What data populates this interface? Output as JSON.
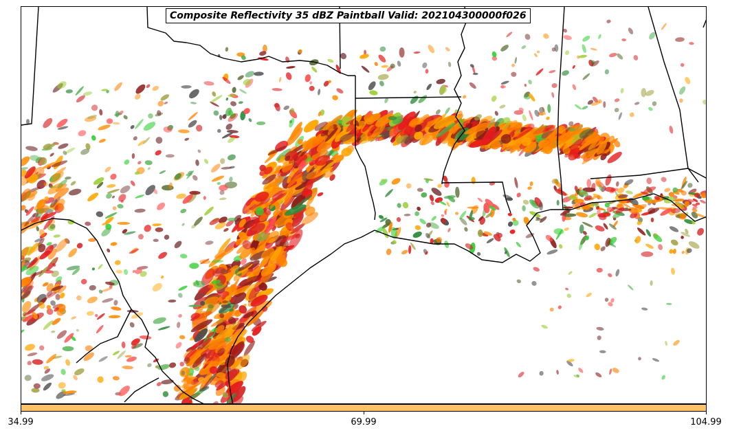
{
  "title": "Composite Reflectivity 35 dBZ Paintball Valid: 202104300000f026",
  "colorbar": {
    "color": "#ffc265",
    "ticks": [
      "34.99",
      "69.99",
      "104.99"
    ]
  },
  "paintball_colors": [
    "#ff8c00",
    "#ff7f00",
    "#ffa500",
    "#e41a1c",
    "#d62728",
    "#8b1a1a",
    "#7a3b3b",
    "#2e8b3a",
    "#4daf4a",
    "#32cd32",
    "#9acd32",
    "#a0a040",
    "#556b2f",
    "#4d4d4d",
    "#ff5050"
  ],
  "map_features": [
    "coastline",
    "state-borders",
    "country-border"
  ]
}
